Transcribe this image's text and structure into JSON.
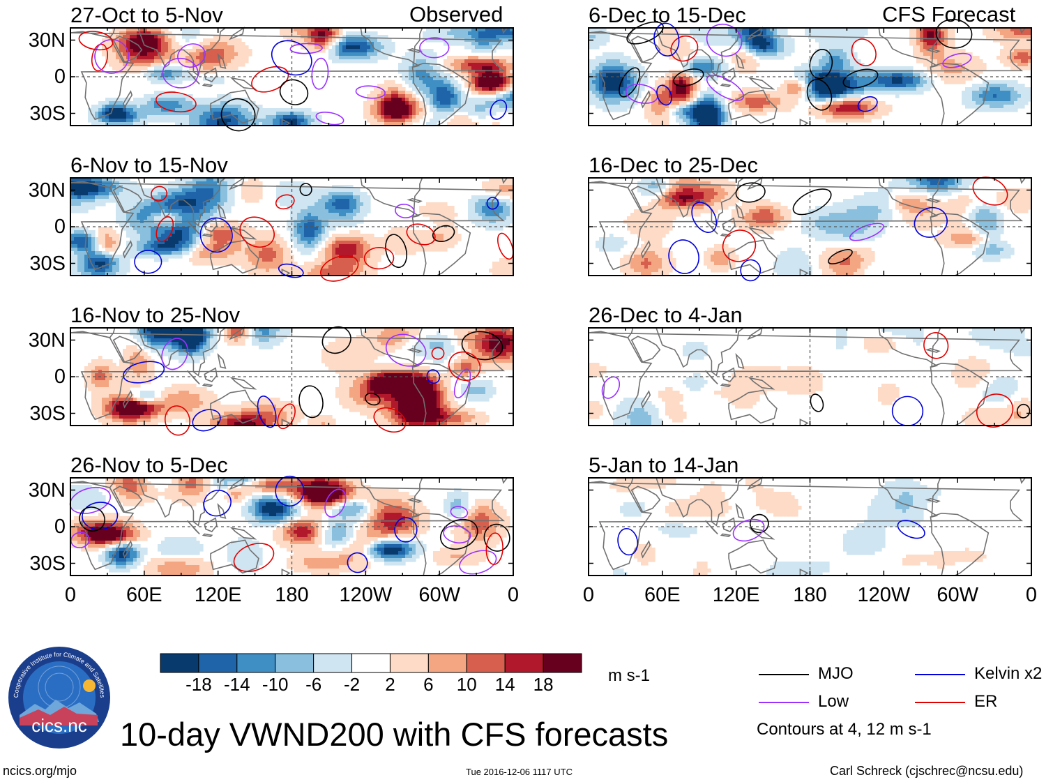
{
  "figure": {
    "title": "10-day VWND200 with CFS forecasts",
    "site": "ncics.org/mjo",
    "timestamp": "Tue 2016-12-06 1117 UTC",
    "author": "Carl Schreck (cjschrec@ncsu.edu)",
    "logo_text": "cics.nc",
    "logo_ring": "Cooperative Institute for Climate and Satellites"
  },
  "columns": {
    "observed": "Observed",
    "forecast": "CFS Forecast"
  },
  "chart_data": {
    "type": "heatmap",
    "variable": "VWND200",
    "units": "m s-1",
    "xticks": [
      "0",
      "60E",
      "120E",
      "180",
      "120W",
      "60W",
      "0"
    ],
    "yticks": [
      "30N",
      "0",
      "30S"
    ],
    "xlim": [
      0,
      360
    ],
    "ylim": [
      -40,
      40
    ],
    "panels": [
      {
        "title": "27-Oct to 5-Nov",
        "source": "Observed",
        "amplitude": 1.0
      },
      {
        "title": "6-Nov to 15-Nov",
        "source": "Observed",
        "amplitude": 1.0
      },
      {
        "title": "16-Nov to 25-Nov",
        "source": "Observed",
        "amplitude": 1.1
      },
      {
        "title": "26-Nov to 5-Dec",
        "source": "Observed",
        "amplitude": 1.0
      },
      {
        "title": "6-Dec to 15-Dec",
        "source": "CFS Forecast",
        "amplitude": 0.95
      },
      {
        "title": "16-Dec to 25-Dec",
        "source": "CFS Forecast",
        "amplitude": 0.55
      },
      {
        "title": "26-Dec to 4-Jan",
        "source": "CFS Forecast",
        "amplitude": 0.3
      },
      {
        "title": "5-Jan to 14-Jan",
        "source": "CFS Forecast",
        "amplitude": 0.22
      }
    ],
    "colorbar": {
      "levels": [
        "-18",
        "-14",
        "-10",
        "-6",
        "-2",
        "2",
        "6",
        "10",
        "14",
        "18"
      ],
      "colors": [
        "#083a6e",
        "#1f64a8",
        "#3f8ec4",
        "#8ac0dd",
        "#cfe5f1",
        "#ffffff",
        "#fddbc7",
        "#f4a582",
        "#d6604d",
        "#b2182b",
        "#67001f"
      ],
      "units": "m s-1"
    },
    "legend": [
      {
        "label": "MJO",
        "color": "#000000"
      },
      {
        "label": "Kelvin x2",
        "color": "#0000dd"
      },
      {
        "label": "Low",
        "color": "#9b30ff"
      },
      {
        "label": "ER",
        "color": "#e00000"
      }
    ],
    "contour_note": "Contours at 4, 12 m s-1"
  }
}
